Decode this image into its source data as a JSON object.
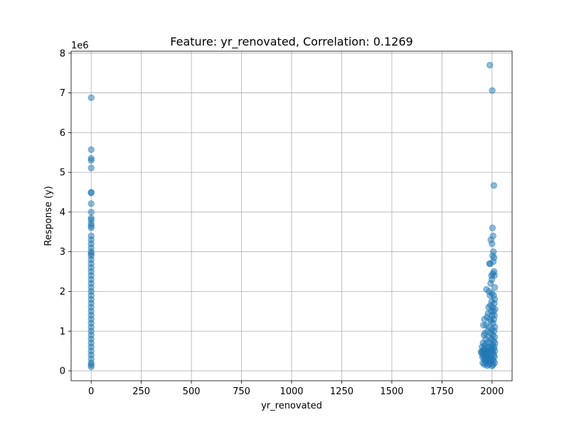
{
  "chart_data": {
    "type": "scatter",
    "title": "Feature: yr_renovated, Correlation: 0.1269",
    "xlabel": "yr_renovated",
    "ylabel": "Response (y)",
    "y_offset_label": "1e6",
    "xlim": [
      -100,
      2100
    ],
    "ylim": [
      -250000,
      8050000
    ],
    "x_ticks": [
      0,
      250,
      500,
      750,
      1000,
      1250,
      1500,
      1750,
      2000
    ],
    "x_tick_labels": [
      "0",
      "250",
      "500",
      "750",
      "1000",
      "1250",
      "1500",
      "1750",
      "2000"
    ],
    "y_ticks": [
      0,
      1000000,
      2000000,
      3000000,
      4000000,
      5000000,
      6000000,
      7000000,
      8000000
    ],
    "y_tick_labels": [
      "0",
      "1",
      "2",
      "3",
      "4",
      "5",
      "6",
      "7",
      "8"
    ],
    "grid": true,
    "marker_color": "#1f77b4",
    "marker_alpha": 0.5,
    "series": [
      {
        "points": [
          [
            0,
            6880000
          ],
          [
            0,
            5570000
          ],
          [
            0,
            5350000
          ],
          [
            0,
            5300000
          ],
          [
            0,
            5110000
          ],
          [
            0,
            4500000
          ],
          [
            0,
            4480000
          ],
          [
            0,
            4210000
          ],
          [
            0,
            4000000
          ],
          [
            0,
            3850000
          ],
          [
            0,
            3800000
          ],
          [
            0,
            3710000
          ],
          [
            0,
            3650000
          ],
          [
            0,
            3600000
          ],
          [
            0,
            3400000
          ],
          [
            0,
            3300000
          ],
          [
            0,
            3200000
          ],
          [
            0,
            3100000
          ],
          [
            0,
            3000000
          ],
          [
            0,
            2950000
          ],
          [
            0,
            2900000
          ],
          [
            0,
            2800000
          ],
          [
            0,
            2700000
          ],
          [
            0,
            2600000
          ],
          [
            0,
            2500000
          ],
          [
            0,
            2400000
          ],
          [
            0,
            2300000
          ],
          [
            0,
            2200000
          ],
          [
            0,
            2100000
          ],
          [
            0,
            2000000
          ],
          [
            0,
            1900000
          ],
          [
            0,
            1800000
          ],
          [
            0,
            1700000
          ],
          [
            0,
            1600000
          ],
          [
            0,
            1500000
          ],
          [
            0,
            1400000
          ],
          [
            0,
            1300000
          ],
          [
            0,
            1200000
          ],
          [
            0,
            1100000
          ],
          [
            0,
            1000000
          ],
          [
            0,
            900000
          ],
          [
            0,
            800000
          ],
          [
            0,
            700000
          ],
          [
            0,
            600000
          ],
          [
            0,
            500000
          ],
          [
            0,
            400000
          ],
          [
            0,
            300000
          ],
          [
            0,
            200000
          ],
          [
            0,
            150000
          ],
          [
            0,
            100000
          ],
          [
            1989,
            7700000
          ],
          [
            2001,
            7060000
          ],
          [
            2009,
            4670000
          ],
          [
            2002,
            3600000
          ],
          [
            2005,
            3400000
          ],
          [
            1994,
            3300000
          ],
          [
            2000,
            3200000
          ],
          [
            2007,
            3000000
          ],
          [
            2003,
            2900000
          ],
          [
            2010,
            2850000
          ],
          [
            2006,
            2750000
          ],
          [
            1987,
            2700000
          ],
          [
            1991,
            2700000
          ],
          [
            2010,
            2500000
          ],
          [
            2004,
            2450000
          ],
          [
            1997,
            2400000
          ],
          [
            2012,
            2400000
          ],
          [
            1999,
            2300000
          ],
          [
            1993,
            2200000
          ],
          [
            2014,
            2100000
          ],
          [
            1972,
            2050000
          ],
          [
            1985,
            2000000
          ],
          [
            2000,
            1950000
          ],
          [
            1990,
            1900000
          ],
          [
            2008,
            1900000
          ],
          [
            2013,
            1800000
          ],
          [
            1998,
            1750000
          ],
          [
            2011,
            1700000
          ],
          [
            1992,
            1650000
          ],
          [
            1983,
            1600000
          ],
          [
            2003,
            1600000
          ],
          [
            2015,
            1550000
          ],
          [
            1996,
            1500000
          ],
          [
            2007,
            1500000
          ],
          [
            1980,
            1450000
          ],
          [
            2001,
            1400000
          ],
          [
            2012,
            1400000
          ],
          [
            1975,
            1350000
          ],
          [
            1990,
            1300000
          ],
          [
            2009,
            1300000
          ],
          [
            1962,
            1300000
          ],
          [
            1995,
            1250000
          ],
          [
            2005,
            1200000
          ],
          [
            1970,
            1150000
          ],
          [
            1957,
            1150000
          ],
          [
            1986,
            1100000
          ],
          [
            2014,
            1100000
          ],
          [
            2000,
            1050000
          ],
          [
            1978,
            1000000
          ],
          [
            2010,
            1000000
          ],
          [
            1965,
            950000
          ],
          [
            1992,
            950000
          ],
          [
            2004,
            900000
          ],
          [
            1960,
            900000
          ],
          [
            1984,
            850000
          ],
          [
            2013,
            850000
          ],
          [
            1968,
            800000
          ],
          [
            1998,
            800000
          ],
          [
            2008,
            750000
          ],
          [
            1955,
            700000
          ],
          [
            1975,
            700000
          ],
          [
            1989,
            700000
          ],
          [
            2015,
            700000
          ],
          [
            1963,
            650000
          ],
          [
            2002,
            650000
          ],
          [
            1950,
            600000
          ],
          [
            1982,
            600000
          ],
          [
            1997,
            600000
          ],
          [
            2011,
            600000
          ],
          [
            1958,
            550000
          ],
          [
            1971,
            550000
          ],
          [
            1994,
            550000
          ],
          [
            2006,
            550000
          ],
          [
            1945,
            480000
          ],
          [
            1953,
            500000
          ],
          [
            1967,
            500000
          ],
          [
            1979,
            500000
          ],
          [
            1999,
            500000
          ],
          [
            2014,
            500000
          ],
          [
            1948,
            450000
          ],
          [
            1960,
            450000
          ],
          [
            1973,
            450000
          ],
          [
            1987,
            450000
          ],
          [
            2003,
            450000
          ],
          [
            1956,
            400000
          ],
          [
            1969,
            400000
          ],
          [
            1985,
            400000
          ],
          [
            2009,
            400000
          ],
          [
            1952,
            350000
          ],
          [
            1964,
            350000
          ],
          [
            1977,
            350000
          ],
          [
            1993,
            350000
          ],
          [
            2012,
            350000
          ],
          [
            1959,
            300000
          ],
          [
            1974,
            300000
          ],
          [
            1988,
            300000
          ],
          [
            2001,
            300000
          ],
          [
            1966,
            250000
          ],
          [
            1981,
            250000
          ],
          [
            1996,
            250000
          ],
          [
            2007,
            250000
          ],
          [
            1954,
            200000
          ],
          [
            1970,
            200000
          ],
          [
            1991,
            200000
          ],
          [
            2013,
            200000
          ],
          [
            1962,
            160000
          ],
          [
            1984,
            160000
          ],
          [
            2005,
            150000
          ],
          [
            1976,
            130000
          ],
          [
            2000,
            120000
          ]
        ]
      }
    ]
  }
}
